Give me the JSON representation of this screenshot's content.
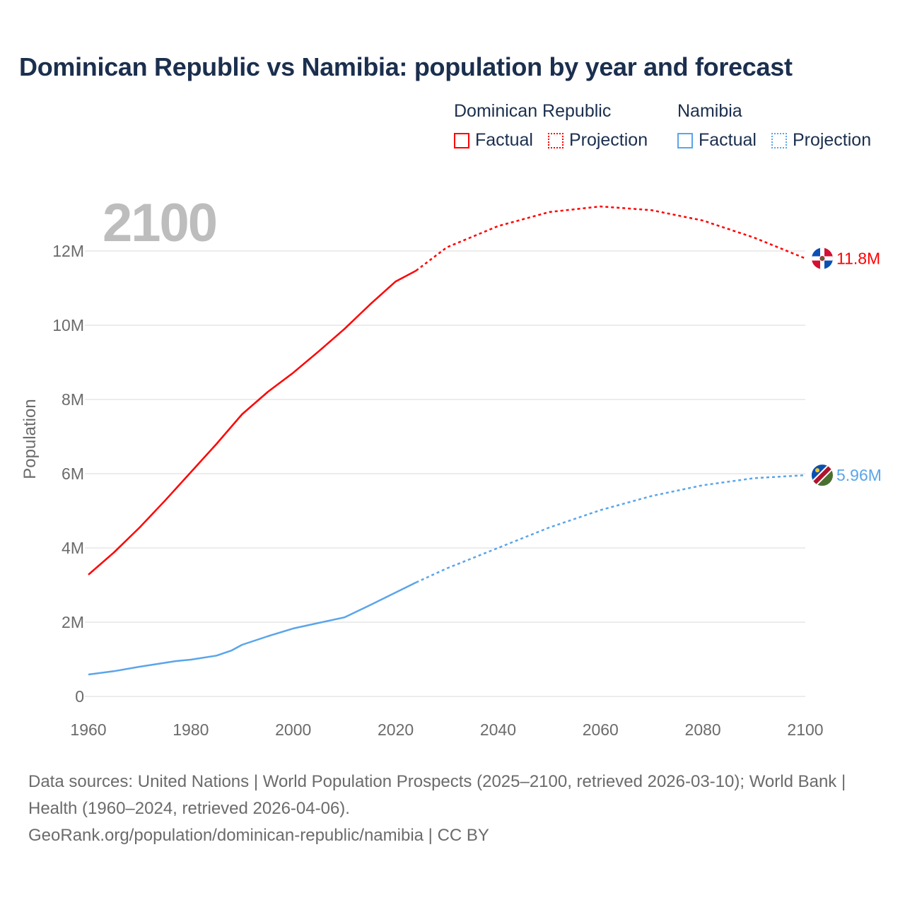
{
  "title": "Dominican Republic vs Namibia: population by year and forecast",
  "year_display": "2100",
  "legend": [
    {
      "country": "Dominican Republic",
      "color": "#ff0000",
      "factual_label": "Factual",
      "projection_label": "Projection"
    },
    {
      "country": "Namibia",
      "color": "#5aa5ea",
      "factual_label": "Factual",
      "projection_label": "Projection"
    }
  ],
  "footer": {
    "sources": "Data sources: United Nations | World Population Prospects (2025–2100, retrieved 2026-03-10); World Bank | Health (1960–2024, retrieved 2026-04-06).",
    "link": "GeoRank.org/population/dominican-republic/namibia | CC BY"
  },
  "chart_data": {
    "type": "line",
    "title": "Dominican Republic vs Namibia: population by year and forecast",
    "xlabel": "",
    "ylabel": "Population",
    "xlim": [
      1960,
      2100
    ],
    "ylim": [
      0,
      12000000
    ],
    "x_ticks": [
      "1960",
      "1980",
      "2000",
      "2020",
      "2040",
      "2060",
      "2080",
      "2100"
    ],
    "y_ticks": [
      {
        "v": 0,
        "label": "0"
      },
      {
        "v": 2000000,
        "label": "2M"
      },
      {
        "v": 4000000,
        "label": "4M"
      },
      {
        "v": 6000000,
        "label": "6M"
      },
      {
        "v": 8000000,
        "label": "8M"
      },
      {
        "v": 10000000,
        "label": "10M"
      },
      {
        "v": 12000000,
        "label": "12M"
      }
    ],
    "grid": true,
    "legend_position": "top-right",
    "series": [
      {
        "name": "Dominican Republic",
        "color": "#ff0000",
        "end_label": "11.8M",
        "factual": {
          "x": [
            1960,
            1965,
            1970,
            1975,
            1980,
            1985,
            1990,
            1995,
            2000,
            2005,
            2010,
            2015,
            2020,
            2024
          ],
          "y": [
            3.28,
            3.88,
            4.55,
            5.28,
            6.04,
            6.8,
            7.6,
            8.2,
            8.72,
            9.3,
            9.9,
            10.56,
            11.18,
            11.47
          ]
        },
        "projection": {
          "x": [
            2024,
            2030,
            2040,
            2050,
            2060,
            2070,
            2080,
            2090,
            2100
          ],
          "y": [
            11.47,
            12.1,
            12.67,
            13.05,
            13.2,
            13.1,
            12.82,
            12.36,
            11.8
          ]
        }
      },
      {
        "name": "Namibia",
        "color": "#5aa5ea",
        "end_label": "5.96M",
        "factual": {
          "x": [
            1960,
            1965,
            1970,
            1977,
            1980,
            1985,
            1988,
            1990,
            1995,
            2000,
            2005,
            2010,
            2015,
            2020,
            2024
          ],
          "y": [
            0.59,
            0.68,
            0.8,
            0.95,
            0.99,
            1.1,
            1.24,
            1.39,
            1.62,
            1.83,
            1.98,
            2.13,
            2.46,
            2.8,
            3.07
          ]
        },
        "projection": {
          "x": [
            2024,
            2030,
            2040,
            2050,
            2060,
            2070,
            2080,
            2090,
            2100
          ],
          "y": [
            3.07,
            3.45,
            4.0,
            4.55,
            5.02,
            5.4,
            5.69,
            5.88,
            5.96
          ]
        }
      }
    ],
    "y_unit": "millions"
  }
}
